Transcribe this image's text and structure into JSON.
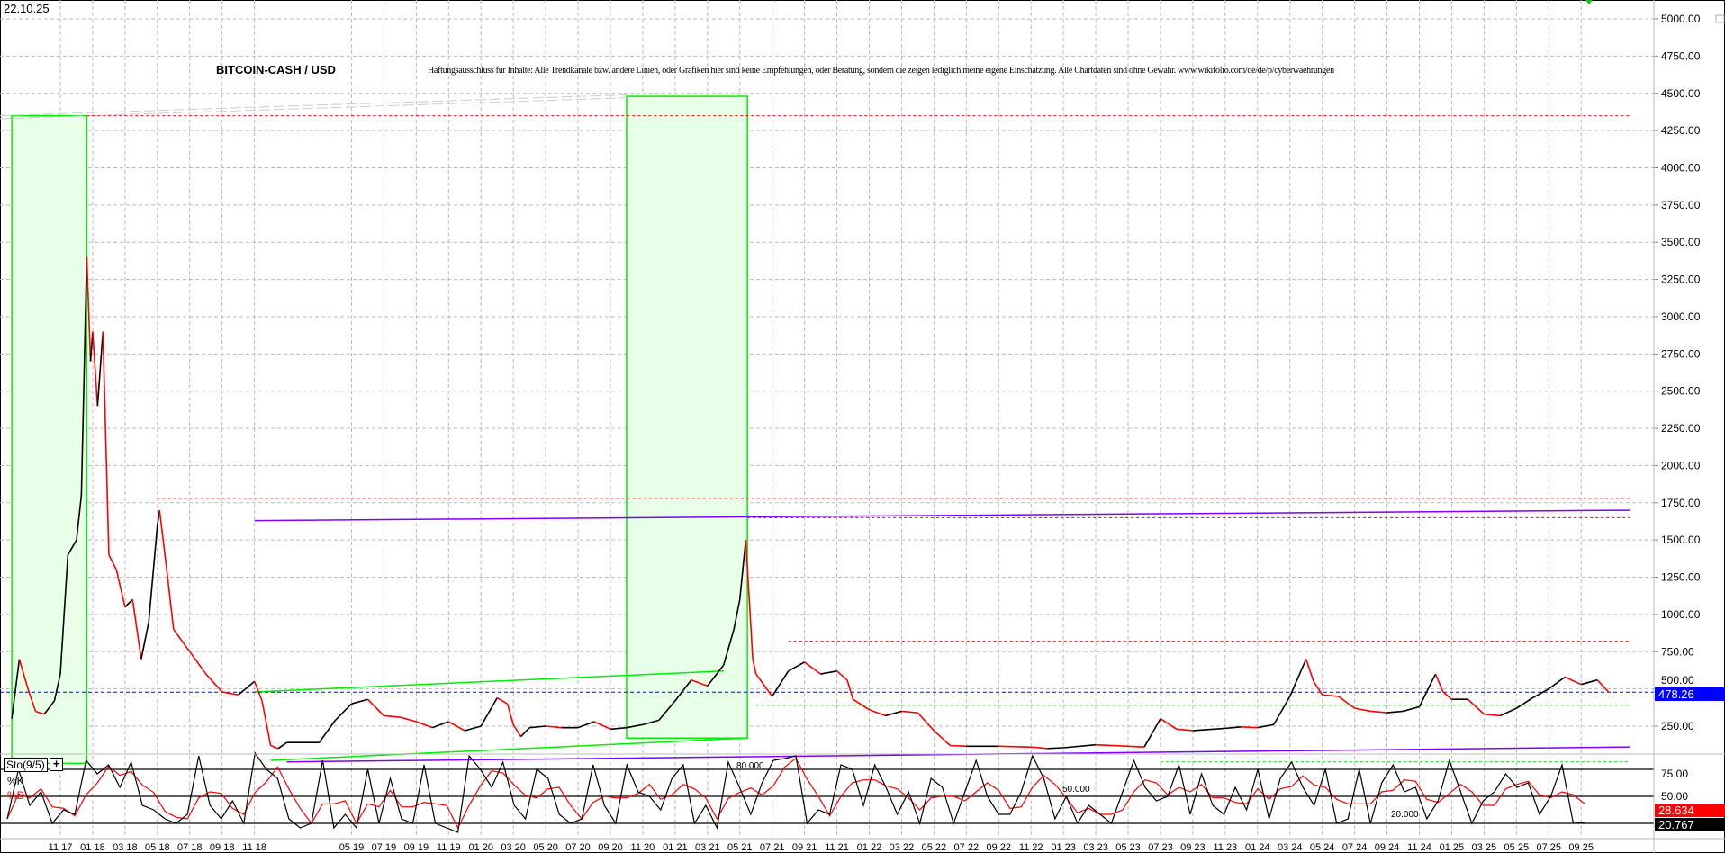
{
  "header": {
    "date": "22.10.25",
    "title": "BITCOIN-CASH / USD",
    "disclaimer": "Haftungsausschluss für Inhalte: Alle Trendkanäle bzw. andere Linien, oder Grafiken hier sind keine Empfehlungen, oder Beratung, sondern die zeigen lediglich meine eigene Einschätzung. Alle Chartdaten sind ohne Gewähr.  www.wikifolio.com/de/de/p/cyberwaehrungen"
  },
  "colors": {
    "candle_up": "#000000",
    "candle_down": "#ff0000",
    "last_price": "#0000ff",
    "resistance": "#ff0000",
    "support": "#00dd00",
    "trend": "#00ee00",
    "long_trend": "#8000ff",
    "zone_fill": "#e8ffe8",
    "k_line": "#000000",
    "d_line": "#ff0000"
  },
  "chart_data": [
    {
      "type": "line",
      "title": "BITCOIN-CASH / USD",
      "ylim": [
        0,
        5100
      ],
      "grid": true,
      "yticks": [
        "5000.00",
        "4750.00",
        "4500.00",
        "4250.00",
        "4000.00",
        "3750.00",
        "3500.00",
        "3250.00",
        "3000.00",
        "2750.00",
        "2500.00",
        "2250.00",
        "2000.00",
        "1750.00",
        "1500.00",
        "1250.00",
        "1000.00",
        "750.00",
        "500.00",
        "250.00"
      ],
      "last_price": "478.26",
      "series": [
        {
          "points": [
            [
              "2017-08",
              300
            ],
            [
              "2017-08-15",
              700
            ],
            [
              "2017-09",
              500
            ],
            [
              "2017-09-15",
              350
            ],
            [
              "2017-10",
              330
            ],
            [
              "2017-10-20",
              420
            ],
            [
              "2017-11",
              600
            ],
            [
              "2017-11-15",
              1400
            ],
            [
              "2017-12",
              1500
            ],
            [
              "2017-12-10",
              1800
            ],
            [
              "2017-12-20",
              3400
            ],
            [
              "2017-12-27",
              2700
            ],
            [
              "2018-01",
              2900
            ],
            [
              "2018-01-10",
              2400
            ],
            [
              "2018-01-20",
              2900
            ],
            [
              "2018-02",
              1400
            ],
            [
              "2018-02-15",
              1300
            ],
            [
              "2018-03",
              1050
            ],
            [
              "2018-03-15",
              1100
            ],
            [
              "2018-04",
              700
            ],
            [
              "2018-04-15",
              950
            ],
            [
              "2018-05",
              1600
            ],
            [
              "2018-05-05",
              1700
            ],
            [
              "2018-05-20",
              1250
            ],
            [
              "2018-06",
              900
            ],
            [
              "2018-07",
              750
            ],
            [
              "2018-08",
              600
            ],
            [
              "2018-09",
              480
            ],
            [
              "2018-10",
              460
            ],
            [
              "2018-11",
              550
            ],
            [
              "2018-11-15",
              420
            ],
            [
              "2018-12",
              120
            ],
            [
              "2018-12-15",
              100
            ],
            [
              "2019-01",
              140
            ],
            [
              "2019-03",
              140
            ],
            [
              "2019-04",
              290
            ],
            [
              "2019-05",
              400
            ],
            [
              "2019-06",
              430
            ],
            [
              "2019-07",
              320
            ],
            [
              "2019-08",
              310
            ],
            [
              "2019-09",
              280
            ],
            [
              "2019-10",
              240
            ],
            [
              "2019-11",
              280
            ],
            [
              "2019-12",
              220
            ],
            [
              "2020-01",
              250
            ],
            [
              "2020-02",
              440
            ],
            [
              "2020-02-20",
              400
            ],
            [
              "2020-03",
              260
            ],
            [
              "2020-03-15",
              180
            ],
            [
              "2020-04",
              240
            ],
            [
              "2020-05",
              250
            ],
            [
              "2020-06",
              240
            ],
            [
              "2020-07",
              240
            ],
            [
              "2020-08",
              280
            ],
            [
              "2020-09",
              230
            ],
            [
              "2020-10",
              240
            ],
            [
              "2020-11",
              260
            ],
            [
              "2020-12",
              290
            ],
            [
              "2021-01",
              420
            ],
            [
              "2021-02",
              560
            ],
            [
              "2021-03",
              520
            ],
            [
              "2021-04",
              660
            ],
            [
              "2021-04-20",
              900
            ],
            [
              "2021-05",
              1100
            ],
            [
              "2021-05-12",
              1500
            ],
            [
              "2021-05-25",
              700
            ],
            [
              "2021-06",
              600
            ],
            [
              "2021-07",
              450
            ],
            [
              "2021-08",
              620
            ],
            [
              "2021-09",
              680
            ],
            [
              "2021-10",
              600
            ],
            [
              "2021-11",
              620
            ],
            [
              "2021-11-20",
              560
            ],
            [
              "2021-12",
              430
            ],
            [
              "2022-01",
              360
            ],
            [
              "2022-02",
              320
            ],
            [
              "2022-03",
              350
            ],
            [
              "2022-04",
              340
            ],
            [
              "2022-05",
              220
            ],
            [
              "2022-06",
              120
            ],
            [
              "2022-07",
              115
            ],
            [
              "2022-09",
              115
            ],
            [
              "2022-11",
              110
            ],
            [
              "2022-12",
              100
            ],
            [
              "2023-01",
              105
            ],
            [
              "2023-03",
              125
            ],
            [
              "2023-05",
              115
            ],
            [
              "2023-06",
              110
            ],
            [
              "2023-07",
              300
            ],
            [
              "2023-08",
              230
            ],
            [
              "2023-09",
              220
            ],
            [
              "2023-11",
              235
            ],
            [
              "2023-12",
              245
            ],
            [
              "2024-01",
              240
            ],
            [
              "2024-02",
              260
            ],
            [
              "2024-03",
              450
            ],
            [
              "2024-04",
              700
            ],
            [
              "2024-04-15",
              550
            ],
            [
              "2024-05",
              460
            ],
            [
              "2024-06",
              450
            ],
            [
              "2024-07",
              370
            ],
            [
              "2024-08",
              350
            ],
            [
              "2024-09",
              340
            ],
            [
              "2024-10",
              350
            ],
            [
              "2024-11",
              380
            ],
            [
              "2024-12",
              600
            ],
            [
              "2024-12-15",
              480
            ],
            [
              "2025-01",
              430
            ],
            [
              "2025-02",
              430
            ],
            [
              "2025-03",
              330
            ],
            [
              "2025-04",
              320
            ],
            [
              "2025-05",
              370
            ],
            [
              "2025-06",
              440
            ],
            [
              "2025-07",
              500
            ],
            [
              "2025-08",
              580
            ],
            [
              "2025-09",
              530
            ],
            [
              "2025-10",
              560
            ],
            [
              "2025-10-22",
              478.26
            ]
          ]
        }
      ],
      "annotations": {
        "zones": [
          {
            "from": "2017-08",
            "to": "2017-12-20",
            "low": 0,
            "high": 4350
          },
          {
            "from": "2020-10",
            "to": "2021-05-15",
            "low": 170,
            "high": 4480
          }
        ],
        "resistance_lines": [
          {
            "from": "2017-12-20",
            "to": "2025-12",
            "value": 4350
          },
          {
            "from": "2018-05",
            "to": "2025-12",
            "value": 1780
          },
          {
            "from": "2021-05-15",
            "to": "2025-12",
            "value": 1650
          },
          {
            "from": "2021-08",
            "to": "2025-12",
            "value": 820
          }
        ],
        "support_lines": [
          {
            "from": "2021-06",
            "to": "2025-12",
            "value": 390
          },
          {
            "from": "2023-07",
            "to": "2025-12",
            "value": 10
          }
        ],
        "trend_lines": [
          {
            "from": "2018-11",
            "v1": 480,
            "to": "2021-04",
            "v2": 620,
            "color": "trend"
          },
          {
            "from": "2018-12",
            "v1": 20,
            "to": "2021-05-15",
            "v2": 170,
            "color": "trend"
          },
          {
            "from": "2018-11",
            "v1": 1630,
            "to": "2025-12",
            "v2": 1700,
            "color": "long_trend"
          },
          {
            "from": "2019-01",
            "v1": 10,
            "to": "2025-12",
            "v2": 110,
            "color": "long_trend"
          }
        ]
      }
    },
    {
      "type": "line",
      "title": "Sto(9/5)",
      "legend": [
        "%K",
        "%D"
      ],
      "ylim": [
        0,
        100
      ],
      "levels": [
        "80.000",
        "50.000",
        "20.000"
      ],
      "yticks": [
        "75.00",
        "50.00"
      ],
      "k_last": "20.767",
      "d_last": "28.634",
      "k_values": [
        25,
        80,
        40,
        55,
        20,
        35,
        30,
        90,
        75,
        85,
        60,
        88,
        40,
        35,
        25,
        20,
        30,
        95,
        40,
        25,
        45,
        20,
        98,
        80,
        70,
        25,
        15,
        20,
        90,
        15,
        30,
        15,
        80,
        20,
        70,
        25,
        20,
        85,
        20,
        15,
        10,
        95,
        80,
        60,
        88,
        40,
        25,
        80,
        70,
        30,
        20,
        25,
        85,
        40,
        20,
        85,
        55,
        50,
        35,
        70,
        85,
        20,
        40,
        15,
        88,
        60,
        30,
        65,
        90,
        92,
        95,
        20,
        35,
        30,
        85,
        80,
        40,
        85,
        60,
        30,
        55,
        20,
        70,
        60,
        20,
        55,
        90,
        50,
        30,
        30,
        55,
        95,
        70,
        25,
        50,
        20,
        40,
        30,
        20,
        55,
        90,
        60,
        45,
        50,
        85,
        30,
        75,
        40,
        30,
        60,
        35,
        80,
        25,
        70,
        88,
        60,
        40,
        80,
        20,
        25,
        80,
        20,
        65,
        85,
        55,
        60,
        25,
        45,
        90,
        55,
        20,
        45,
        55,
        75,
        60,
        65,
        30,
        50,
        85,
        20,
        20.767
      ],
      "xticks": [
        "11 17",
        "01 18",
        "03 18",
        "05 18",
        "07 18",
        "09 18",
        "11 18",
        "05 19",
        "07 19",
        "09 19",
        "11 19",
        "01 20",
        "03 20",
        "05 20",
        "07 20",
        "09 20",
        "11 20",
        "01 21",
        "03 21",
        "05 21",
        "07 21",
        "09 21",
        "11 21",
        "01 22",
        "03 22",
        "05 22",
        "07 22",
        "09 22",
        "11 22",
        "01 23",
        "03 23",
        "05 23",
        "07 23",
        "09 23",
        "11 23",
        "01 24",
        "03 24",
        "05 24",
        "07 24",
        "09 24",
        "11 24",
        "01 25",
        "03 25",
        "05 25",
        "07 25",
        "09 25"
      ]
    }
  ]
}
